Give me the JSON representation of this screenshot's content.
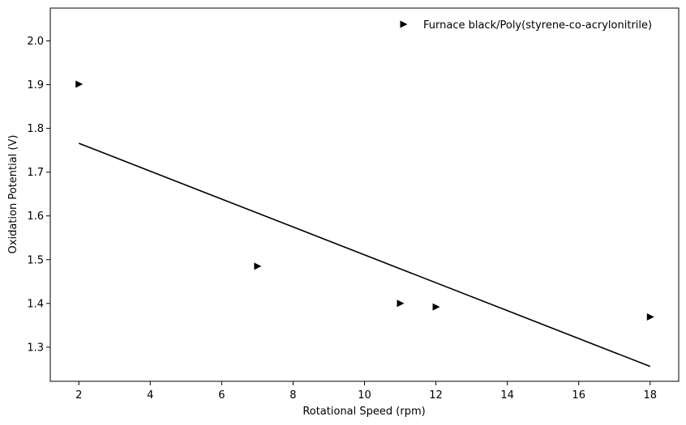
{
  "chart_data": {
    "type": "scatter",
    "xlabel": "Rotational Speed (rpm)",
    "ylabel": "Oxidation Potential (V)",
    "xlim": [
      1.2,
      18.8
    ],
    "ylim": [
      1.222,
      2.075
    ],
    "xticks": [
      2,
      4,
      6,
      8,
      10,
      12,
      14,
      16,
      18
    ],
    "yticks": [
      1.3,
      1.4,
      1.5,
      1.6,
      1.7,
      1.8,
      1.9,
      2.0
    ],
    "xtick_labels": [
      "2",
      "4",
      "6",
      "8",
      "10",
      "12",
      "14",
      "16",
      "18"
    ],
    "ytick_labels": [
      "1.3",
      "1.4",
      "1.5",
      "1.6",
      "1.7",
      "1.8",
      "1.9",
      "2.0"
    ],
    "grid": false,
    "legend_position": "top-right",
    "series": [
      {
        "name": "Furnace black/Poly(styrene-co-acrylonitrile)",
        "marker": "triangle-right",
        "color": "#000000",
        "x": [
          2,
          7,
          11,
          12,
          18
        ],
        "y": [
          1.901,
          1.485,
          1.4,
          1.392,
          1.369
        ]
      }
    ],
    "fit_line": {
      "color": "#000000",
      "x": [
        2,
        18
      ],
      "y": [
        1.766,
        1.256
      ]
    }
  }
}
